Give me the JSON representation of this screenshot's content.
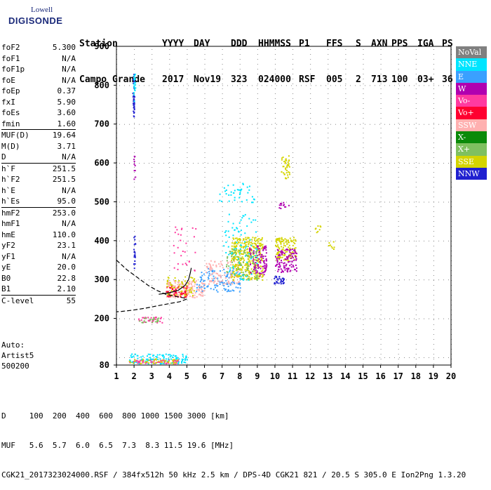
{
  "logo": {
    "line1": "Lowell",
    "line2": "DIGISONDE"
  },
  "header": {
    "row1": [
      "Station",
      "YYYY",
      "DAY",
      "DDD",
      "HHMMSS",
      "P1",
      "FFS",
      "S",
      "AXN",
      "PPS",
      "IGA",
      "PS"
    ],
    "row2": [
      "Campo Grande",
      "2017",
      "Nov19",
      "323",
      "024000",
      "RSF",
      "005",
      "2",
      "713",
      "100",
      "03+",
      "36"
    ]
  },
  "params": [
    {
      "k": "foF2",
      "v": "5.300"
    },
    {
      "k": "foF1",
      "v": "N/A"
    },
    {
      "k": "foF1p",
      "v": "N/A"
    },
    {
      "k": "foE",
      "v": "N/A"
    },
    {
      "k": "foEp",
      "v": "0.37"
    },
    {
      "k": "fxI",
      "v": "5.90"
    },
    {
      "k": "foEs",
      "v": "3.60"
    },
    {
      "k": "fmin",
      "v": "1.60"
    },
    {
      "k": "MUF(D)",
      "v": "19.64",
      "sep": true
    },
    {
      "k": "M(D)",
      "v": "3.71"
    },
    {
      "k": "D",
      "v": "N/A"
    },
    {
      "k": "h`F",
      "v": "251.5",
      "sep": true
    },
    {
      "k": "h`F2",
      "v": "251.5"
    },
    {
      "k": "h`E",
      "v": "N/A"
    },
    {
      "k": "h`Es",
      "v": "95.0"
    },
    {
      "k": "hmF2",
      "v": "253.0",
      "sep": true
    },
    {
      "k": "hmF1",
      "v": "N/A"
    },
    {
      "k": "hmE",
      "v": "110.0"
    },
    {
      "k": "yF2",
      "v": "23.1"
    },
    {
      "k": "yF1",
      "v": "N/A"
    },
    {
      "k": "yE",
      "v": "20.0"
    },
    {
      "k": "B0",
      "v": "22.8"
    },
    {
      "k": "B1",
      "v": "2.10"
    },
    {
      "k": "C-level",
      "v": "55",
      "sep": true
    }
  ],
  "auto": {
    "line1": "Auto:",
    "line2": "Artist5",
    "line3": "500200"
  },
  "legend": [
    {
      "label": "NoVal",
      "color": "#808080"
    },
    {
      "label": "NNE",
      "color": "#00e5ff"
    },
    {
      "label": "E",
      "color": "#3aa0ff"
    },
    {
      "label": "W",
      "color": "#b000b0"
    },
    {
      "label": "Vo-",
      "color": "#ff3aa0"
    },
    {
      "label": "Vo+",
      "color": "#ff0030"
    },
    {
      "label": "SSW",
      "color": "#ffb0b0"
    },
    {
      "label": "X-",
      "color": "#0a8a0a"
    },
    {
      "label": "X+",
      "color": "#7fc060"
    },
    {
      "label": "SSE",
      "color": "#d4d400"
    },
    {
      "label": "NNW",
      "color": "#2020d0"
    }
  ],
  "bottom": {
    "d_row": "D     100  200  400  600  800 1000 1500 3000 [km]",
    "muf_row": "MUF   5.6  5.7  6.0  6.5  7.3  8.3 11.5 19.6 [MHz]",
    "footer": "CGK21_2017323024000.RSF / 384fx512h 50 kHz 2.5 km / DPS-4D CGK21 821 / 20.5 S 305.0 E Ion2Png 1.3.20"
  },
  "chart_data": {
    "type": "scatter",
    "xlim": [
      1,
      20
    ],
    "ylim": [
      80,
      900
    ],
    "x_ticks": [
      "1",
      "2",
      "3",
      "4",
      "5",
      "6",
      "7",
      "8",
      "9",
      "10",
      "11",
      "12",
      "13",
      "14",
      "15",
      "16",
      "17",
      "18",
      "19",
      "20"
    ],
    "y_ticks": [
      "80",
      "200",
      "300",
      "400",
      "500",
      "600",
      "700",
      "800",
      "900"
    ],
    "clusters": [
      {
        "series": "NNW",
        "x": [
          1.9,
          2.0
        ],
        "y": [
          720,
          830
        ],
        "n": 40
      },
      {
        "series": "NNE",
        "x": [
          1.95,
          2.05
        ],
        "y": [
          760,
          830
        ],
        "n": 25
      },
      {
        "series": "NNW",
        "x": [
          1.95,
          2.05
        ],
        "y": [
          330,
          420
        ],
        "n": 20
      },
      {
        "series": "W",
        "x": [
          1.95,
          2.05
        ],
        "y": [
          540,
          620
        ],
        "n": 10
      },
      {
        "series": "Vo-",
        "x": [
          2.2,
          3.6
        ],
        "y": [
          190,
          205
        ],
        "n": 30
      },
      {
        "series": "X+",
        "x": [
          2.2,
          3.6
        ],
        "y": [
          190,
          205
        ],
        "n": 20
      },
      {
        "series": "NNE",
        "x": [
          1.7,
          5.0
        ],
        "y": [
          85,
          110
        ],
        "n": 120
      },
      {
        "series": "Vo-",
        "x": [
          1.7,
          4.5
        ],
        "y": [
          85,
          95
        ],
        "n": 60
      },
      {
        "series": "SSE",
        "x": [
          1.7,
          4.5
        ],
        "y": [
          85,
          98
        ],
        "n": 40
      },
      {
        "series": "SSW",
        "x": [
          3.8,
          6.0
        ],
        "y": [
          255,
          300
        ],
        "n": 150
      },
      {
        "series": "Vo+",
        "x": [
          3.8,
          5.0
        ],
        "y": [
          255,
          285
        ],
        "n": 60
      },
      {
        "series": "SSE",
        "x": [
          3.8,
          5.5
        ],
        "y": [
          260,
          310
        ],
        "n": 60
      },
      {
        "series": "E",
        "x": [
          5.5,
          8.0
        ],
        "y": [
          270,
          330
        ],
        "n": 120
      },
      {
        "series": "SSW",
        "x": [
          6.0,
          8.0
        ],
        "y": [
          290,
          350
        ],
        "n": 100
      },
      {
        "series": "SSE",
        "x": [
          7.5,
          9.3
        ],
        "y": [
          300,
          410
        ],
        "n": 350
      },
      {
        "series": "W",
        "x": [
          8.5,
          9.5
        ],
        "y": [
          310,
          390
        ],
        "n": 100
      },
      {
        "series": "X+",
        "x": [
          7.2,
          9.0
        ],
        "y": [
          300,
          380
        ],
        "n": 80
      },
      {
        "series": "NNE",
        "x": [
          6.8,
          8.8
        ],
        "y": [
          500,
          550
        ],
        "n": 40
      },
      {
        "series": "NNE",
        "x": [
          7.0,
          9.0
        ],
        "y": [
          300,
          470
        ],
        "n": 80
      },
      {
        "series": "SSE",
        "x": [
          10.0,
          11.2
        ],
        "y": [
          350,
          410
        ],
        "n": 120
      },
      {
        "series": "W",
        "x": [
          10.0,
          11.2
        ],
        "y": [
          320,
          380
        ],
        "n": 120
      },
      {
        "series": "NNW",
        "x": [
          9.9,
          10.5
        ],
        "y": [
          290,
          310
        ],
        "n": 30
      },
      {
        "series": "SSE",
        "x": [
          10.3,
          10.8
        ],
        "y": [
          560,
          620
        ],
        "n": 40
      },
      {
        "series": "W",
        "x": [
          10.2,
          10.8
        ],
        "y": [
          480,
          500
        ],
        "n": 12
      },
      {
        "series": "SSE",
        "x": [
          12.2,
          12.6
        ],
        "y": [
          420,
          440
        ],
        "n": 8
      },
      {
        "series": "SSE",
        "x": [
          13.0,
          13.4
        ],
        "y": [
          375,
          400
        ],
        "n": 8
      },
      {
        "series": "Vo-",
        "x": [
          4.2,
          5.5
        ],
        "y": [
          320,
          440
        ],
        "n": 30
      }
    ],
    "profile": [
      [
        1,
        350
      ],
      [
        1.6,
        325
      ],
      [
        2.2,
        305
      ],
      [
        2.8,
        285
      ],
      [
        3.3,
        272
      ],
      [
        3.8,
        262
      ],
      [
        4.3,
        257
      ],
      [
        4.8,
        253
      ],
      [
        5.0,
        250
      ],
      [
        4.6,
        243
      ],
      [
        4.0,
        238
      ],
      [
        3.3,
        232
      ],
      [
        2.6,
        226
      ],
      [
        1.9,
        221
      ],
      [
        1.3,
        218
      ],
      [
        1,
        217
      ]
    ],
    "trace": [
      [
        3.4,
        262
      ],
      [
        4.0,
        266
      ],
      [
        4.5,
        272
      ],
      [
        4.9,
        285
      ],
      [
        5.1,
        300
      ],
      [
        5.2,
        318
      ],
      [
        5.25,
        330
      ]
    ]
  }
}
